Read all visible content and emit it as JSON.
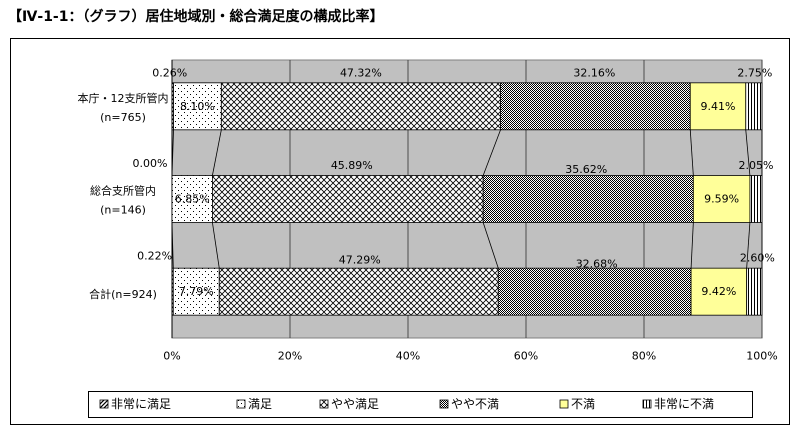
{
  "chart_data": {
    "type": "bar",
    "horizontal": true,
    "stacked": true,
    "title": "【Ⅳ-1-1：（グラフ）居住地域別・総合満足度の構成比率】",
    "categories": [
      [
        "本庁・12支所管内",
        "(n=765)"
      ],
      [
        "総合支所管内",
        "(n=146)"
      ],
      [
        "合計(n=924)"
      ]
    ],
    "series": [
      {
        "name": "非常に満足",
        "values": [
          0.26,
          0.0,
          0.22
        ],
        "labels": [
          "0.26%",
          "0.00%",
          "0.22%"
        ],
        "color": "#000000"
      },
      {
        "name": "満足",
        "values": [
          8.1,
          6.85,
          7.79
        ],
        "labels": [
          "8.10%",
          "6.85%",
          "7.79%"
        ],
        "color": "#000000"
      },
      {
        "name": "やや満足",
        "values": [
          47.32,
          45.89,
          47.29
        ],
        "labels": [
          "47.32%",
          "45.89%",
          "47.29%"
        ],
        "color": "#000000"
      },
      {
        "name": "やや不満",
        "values": [
          32.16,
          35.62,
          32.68
        ],
        "labels": [
          "32.16%",
          "35.62%",
          "32.68%"
        ],
        "color": "#000000"
      },
      {
        "name": "不満",
        "values": [
          9.41,
          9.59,
          9.42
        ],
        "labels": [
          "9.41%",
          "9.59%",
          "9.42%"
        ],
        "color": "#FFFF99"
      },
      {
        "name": "非常に不満",
        "values": [
          2.75,
          2.05,
          2.6
        ],
        "labels": [
          "2.75%",
          "2.05%",
          "2.60%"
        ],
        "color": "#000000"
      }
    ],
    "xlim": [
      0,
      100
    ],
    "xticks": [
      0,
      20,
      40,
      60,
      80,
      100
    ],
    "xtick_labels": [
      "0%",
      "20%",
      "40%",
      "60%",
      "80%",
      "100%"
    ],
    "grid": true,
    "legend": "bottom",
    "plot_background": "#C0C0C0"
  }
}
